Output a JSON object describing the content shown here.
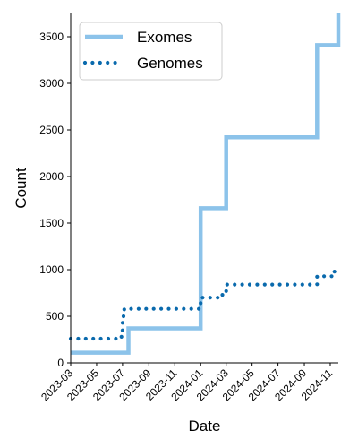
{
  "chart_data": {
    "type": "line",
    "xlabel": "Date",
    "ylabel": "Count",
    "step": "post",
    "grid": false,
    "legend_position": "top-left",
    "ylim": [
      0,
      3750
    ],
    "xlim": [
      "2023-03-01",
      "2024-11-20"
    ],
    "x_ticks": [
      "2023-03",
      "2023-05",
      "2023-07",
      "2023-09",
      "2023-11",
      "2024-01",
      "2024-03",
      "2024-05",
      "2024-07",
      "2024-09",
      "2024-11"
    ],
    "y_ticks": [
      "0",
      "500",
      "1000",
      "1500",
      "2000",
      "2500",
      "3000",
      "3500"
    ],
    "series": [
      {
        "name": "Exomes",
        "color": "#8cc3ea",
        "style": "solid",
        "points": [
          {
            "x": "2023-03-01",
            "y": 110
          },
          {
            "x": "2023-07-15",
            "y": 370
          },
          {
            "x": "2024-01-01",
            "y": 1660
          },
          {
            "x": "2024-03-01",
            "y": 2420
          },
          {
            "x": "2024-10-01",
            "y": 3410
          },
          {
            "x": "2024-11-20",
            "y": 3750
          }
        ]
      },
      {
        "name": "Genomes",
        "color": "#0a6aad",
        "style": "dotted",
        "points": [
          {
            "x": "2023-03-01",
            "y": 260
          },
          {
            "x": "2023-06-25",
            "y": 280
          },
          {
            "x": "2023-07-01",
            "y": 500
          },
          {
            "x": "2023-07-05",
            "y": 580
          },
          {
            "x": "2024-01-01",
            "y": 700
          },
          {
            "x": "2024-02-10",
            "y": 730
          },
          {
            "x": "2024-03-01",
            "y": 840
          },
          {
            "x": "2024-10-01",
            "y": 930
          },
          {
            "x": "2024-11-10",
            "y": 980
          }
        ]
      }
    ]
  }
}
